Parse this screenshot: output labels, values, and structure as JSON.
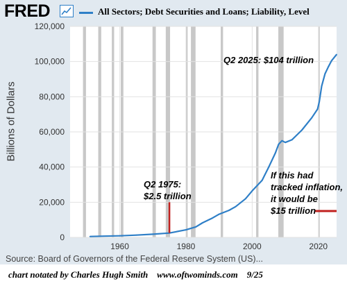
{
  "header": {
    "logo": "FRED",
    "logo_icon": "fred-chart-icon",
    "legend_label": "All Sectors; Debt Securities and Loans; Liability, Level"
  },
  "chart_data": {
    "type": "line",
    "title": "",
    "xlabel": "",
    "ylabel": "Billions of Dollars",
    "xlim": [
      1945,
      2025.5
    ],
    "ylim": [
      0,
      120000
    ],
    "x_ticks": [
      "1960",
      "1980",
      "2000",
      "2020"
    ],
    "y_ticks": [
      "0",
      "20,000",
      "40,000",
      "60,000",
      "80,000",
      "100,000",
      "120,000"
    ],
    "grid": true,
    "series": [
      {
        "name": "All Sectors; Debt Securities and Loans; Liability, Level",
        "color": "#2e7fc7",
        "x": [
          1951,
          1955,
          1960,
          1965,
          1970,
          1975,
          1980,
          1983,
          1985,
          1988,
          1990,
          1993,
          1995,
          1998,
          2000,
          2003,
          2005,
          2007,
          2008,
          2009,
          2010,
          2012,
          2015,
          2018,
          2019.75,
          2020.25,
          2021,
          2022,
          2023,
          2024,
          2025.5
        ],
        "y": [
          500,
          700,
          900,
          1300,
          1800,
          2500,
          4300,
          6000,
          8300,
          11000,
          13200,
          15400,
          17500,
          22000,
          26500,
          32500,
          40000,
          48000,
          53000,
          55000,
          54000,
          55500,
          61000,
          68000,
          73000,
          77000,
          86000,
          93000,
          97000,
          100500,
          104000
        ]
      }
    ],
    "recessions": [
      [
        1948.9,
        1949.8
      ],
      [
        1953.5,
        1954.4
      ],
      [
        1957.6,
        1958.3
      ],
      [
        1960.3,
        1961.1
      ],
      [
        1969.9,
        1970.9
      ],
      [
        1973.9,
        1975.2
      ],
      [
        1980.0,
        1980.5
      ],
      [
        1981.5,
        1982.9
      ],
      [
        1990.5,
        1991.2
      ],
      [
        2001.2,
        2001.9
      ],
      [
        2007.9,
        2009.5
      ],
      [
        2020.1,
        2020.4
      ]
    ],
    "annotations": [
      {
        "lines": [
          "Q2 2025: $104 trillion"
        ]
      },
      {
        "lines": [
          "Q2 1975:",
          "$2.5 trillion"
        ],
        "marker_x": 1975,
        "marker_y": [
          2500,
          20000
        ],
        "marker_color": "#c0201e"
      },
      {
        "lines": [
          "If this had",
          "tracked inflation,",
          "it would be",
          "$15 trillion"
        ],
        "marker_x": [
          2019,
          2025.5
        ],
        "marker_y": 15000,
        "marker_color": "#c0201e"
      }
    ]
  },
  "footer": {
    "source": "Source: Board of Governors of the Federal Reserve System (US)...",
    "credit": "chart notated by Charles Hugh Smith    www.oftwominds.com    9/25"
  }
}
